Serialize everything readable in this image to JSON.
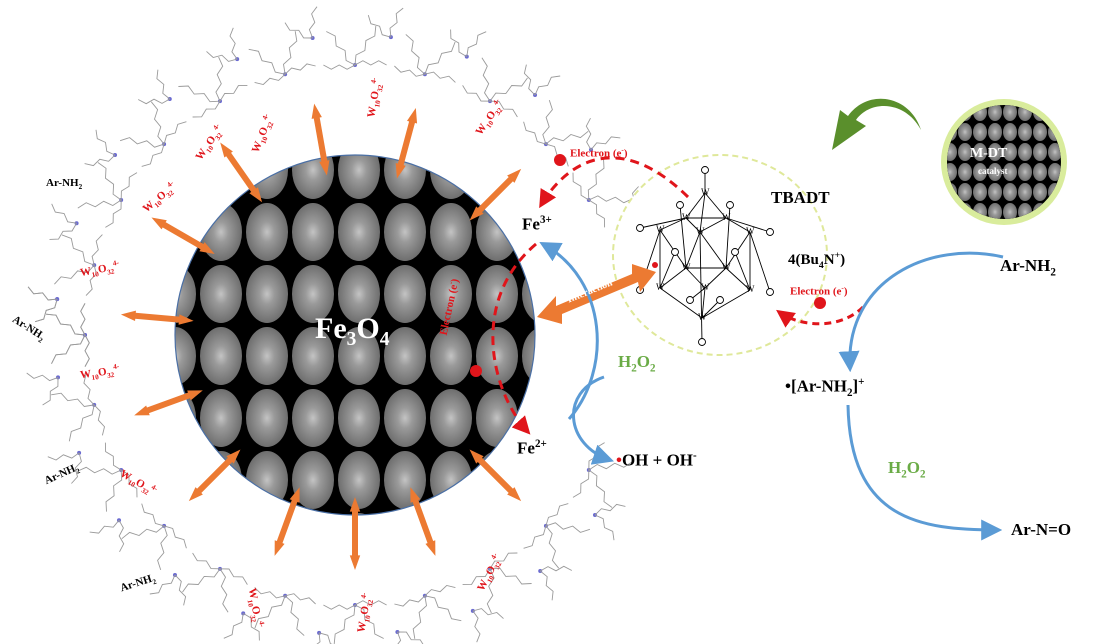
{
  "colors": {
    "core_bg": "#000000",
    "core_grain": "#8a8a8a",
    "arrow_orange": "#ec7a32",
    "arrow_blue": "#5b9bd5",
    "arrow_green": "#5a8f2c",
    "electron_red": "#e0151b",
    "ellipse_outline": "#dfe89a",
    "green_text": "#6aab46",
    "ligand_gray": "#9a9a9a",
    "ligand_node": "#6b6bd0"
  },
  "core": {
    "label_main": "Fe",
    "label_sub": "3",
    "label_main2": "O",
    "label_sub2": "4"
  },
  "arylamine_labels": [
    {
      "main": "Ar-NH",
      "sub": "2"
    },
    {
      "main": "Ar-NH",
      "sub": "2"
    },
    {
      "main": "Ar-NH",
      "sub": "2"
    },
    {
      "main": "Ar-NH",
      "sub": "2"
    }
  ],
  "tungstate_label": {
    "main": "W",
    "sub1": "10",
    "mid": "O",
    "sub2": "32",
    "sup": "4-"
  },
  "iron": {
    "fe3_main": "Fe",
    "fe3_sup": "3+",
    "fe2_main": "Fe",
    "fe2_sup": "2+"
  },
  "peroxide": {
    "main": "H",
    "sub1": "2",
    "mid": "O",
    "sub2": "2"
  },
  "hydroxyl": {
    "dot": "•",
    "text": "OH + OH",
    "sup": "-"
  },
  "electron_label": {
    "text": "Electron (e",
    "sup": "-",
    "close": ")"
  },
  "interaction_label": "Interaction",
  "catalyst": {
    "name": "TBADT",
    "counterion_pre": "4(Bu",
    "counterion_sub": "4",
    "counterion_mid": "N",
    "counterion_sup": "+",
    "counterion_close": ")",
    "atom_w": "W",
    "atom_o": "O"
  },
  "inset": {
    "line1": "M-DT",
    "line2": "catalyst"
  },
  "reaction": {
    "start_main": "Ar-NH",
    "start_sub": "2",
    "radical_dot": "•",
    "radical_main": "[Ar-NH",
    "radical_sub": "2",
    "radical_close": "]",
    "radical_sup": "+",
    "oxidant_main": "H",
    "oxidant_sub1": "2",
    "oxidant_mid": "O",
    "oxidant_sub2": "2",
    "product": "Ar-N=O"
  }
}
